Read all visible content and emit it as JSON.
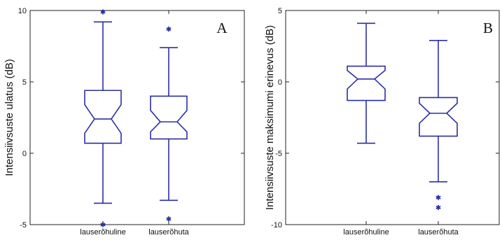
{
  "colors": {
    "box": "#2b2fa6",
    "outlier": "#2b2fa6",
    "axis": "#222222",
    "background": "#ffffff"
  },
  "chart_data": [
    {
      "type": "box",
      "panel_label": "A",
      "ylabel": "Intensiivsuste ulatus (dB)",
      "xlabel": "",
      "ylim": [
        -5,
        10
      ],
      "yticks": [
        -5,
        0,
        5,
        10
      ],
      "ytick_labels": [
        "-5",
        "0",
        "5",
        "10"
      ],
      "categories": [
        "lauserõhuline",
        "lauserõhuta"
      ],
      "boxes": [
        {
          "category": "lauserõhuline",
          "whisker_low": -3.5,
          "q1": 0.7,
          "median": 2.4,
          "q3": 4.4,
          "whisker_high": 9.2,
          "notch_low": 1.4,
          "notch_high": 3.4,
          "outliers": [
            9.9,
            -5.0
          ]
        },
        {
          "category": "lauserõhuta",
          "whisker_low": -3.3,
          "q1": 1.0,
          "median": 2.2,
          "q3": 4.0,
          "whisker_high": 7.4,
          "notch_low": 1.5,
          "notch_high": 3.0,
          "outliers": [
            8.7,
            -4.6
          ]
        }
      ]
    },
    {
      "type": "box",
      "panel_label": "B",
      "ylabel": "Intensiivsuste maksimumi erinevus (dB)",
      "xlabel": "",
      "ylim": [
        -10,
        5
      ],
      "yticks": [
        -10,
        -5,
        0,
        5
      ],
      "ytick_labels": [
        "-10",
        "-5",
        "0",
        "5"
      ],
      "categories": [
        "lauserõhuline",
        "lauserõhuta"
      ],
      "boxes": [
        {
          "category": "lauserõhuline",
          "whisker_low": -4.3,
          "q1": -1.3,
          "median": 0.2,
          "q3": 1.1,
          "whisker_high": 4.1,
          "notch_low": -0.5,
          "notch_high": 0.8,
          "outliers": []
        },
        {
          "category": "lauserõhuta",
          "whisker_low": -7.0,
          "q1": -3.8,
          "median": -2.2,
          "q3": -1.1,
          "whisker_high": 2.9,
          "notch_low": -2.9,
          "notch_high": -1.5,
          "outliers": [
            -8.1,
            -8.8
          ]
        }
      ]
    }
  ]
}
